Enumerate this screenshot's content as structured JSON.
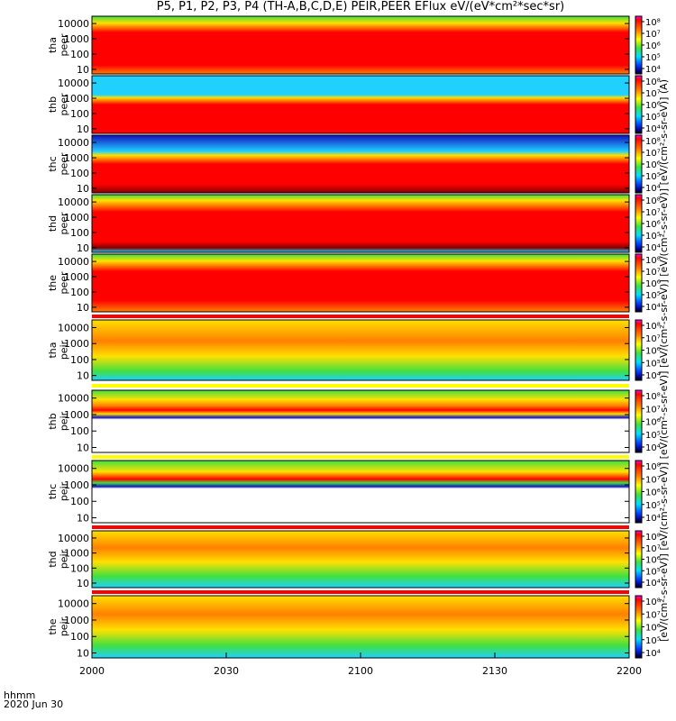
{
  "title": "P5, P1, P2, P3, P4 (TH-A,B,C,D,E) PEIR,PEER EFlux eV/(eV*cm²*sec*sr)",
  "footer": {
    "hhmm": "hhmm",
    "date": "2020 Jun 30"
  },
  "colorbar_units": "[eV/(cm²-s-sr-eV)] [eV/(cm²-s-sr-eV)] [eV/(cm²-s-sr-eV)] [eV/(cm²-s-sr-eV)] [eV/(cm²-s-sr-eV)] [eV/(cm²-s-sr-eV)] (A)",
  "chart_data": {
    "type": "heatmap",
    "x_ticks": [
      "2000",
      "2030",
      "2100",
      "2130",
      "2200"
    ],
    "y_ticks": [
      "10",
      "100",
      "1000",
      "10000"
    ],
    "colorbar_ticks": [
      "10⁴",
      "10⁵",
      "10⁶",
      "10⁷",
      "10⁸"
    ],
    "colorbar_ticks_short": [
      "10⁵",
      "10⁶",
      "10⁷"
    ],
    "colorbar_range": [
      4,
      8
    ],
    "panels": [
      {
        "probe": "tha",
        "species": "peer",
        "label": "tha\npeer",
        "y_label_top": "tha",
        "y_label_bottom": "peer"
      },
      {
        "probe": "thb",
        "species": "peer",
        "label": "thb\npeer",
        "y_label_top": "thb",
        "y_label_bottom": "peer"
      },
      {
        "probe": "thc",
        "species": "peer",
        "label": "thc\npeer",
        "y_label_top": "thc",
        "y_label_bottom": "peer"
      },
      {
        "probe": "thd",
        "species": "peer",
        "label": "thd\npeer",
        "y_label_top": "thd",
        "y_label_bottom": "peer"
      },
      {
        "probe": "the",
        "species": "peer",
        "label": "the\npeer",
        "y_label_top": "the",
        "y_label_bottom": "peer"
      },
      {
        "probe": "tha",
        "species": "peir",
        "label": "tha\npeir",
        "y_label_top": "tha",
        "y_label_bottom": "peir"
      },
      {
        "probe": "thb",
        "species": "peir",
        "label": "thb\npeir",
        "y_label_top": "thb",
        "y_label_bottom": "peir"
      },
      {
        "probe": "thc",
        "species": "peir",
        "label": "thc\npeir",
        "y_label_top": "thc",
        "y_label_bottom": "peir"
      },
      {
        "probe": "thd",
        "species": "peir",
        "label": "thd\npeir",
        "y_label_top": "thd",
        "y_label_bottom": "peir"
      },
      {
        "probe": "the",
        "species": "peir",
        "label": "the\npeir",
        "y_label_top": "the",
        "y_label_bottom": "peir"
      }
    ],
    "colors": {
      "low": "#1010c0",
      "cyan": "#20d0ff",
      "green": "#40e040",
      "yellow": "#ffe000",
      "orange": "#ff8000",
      "red": "#ff0000",
      "dark_red": "#800000"
    }
  }
}
